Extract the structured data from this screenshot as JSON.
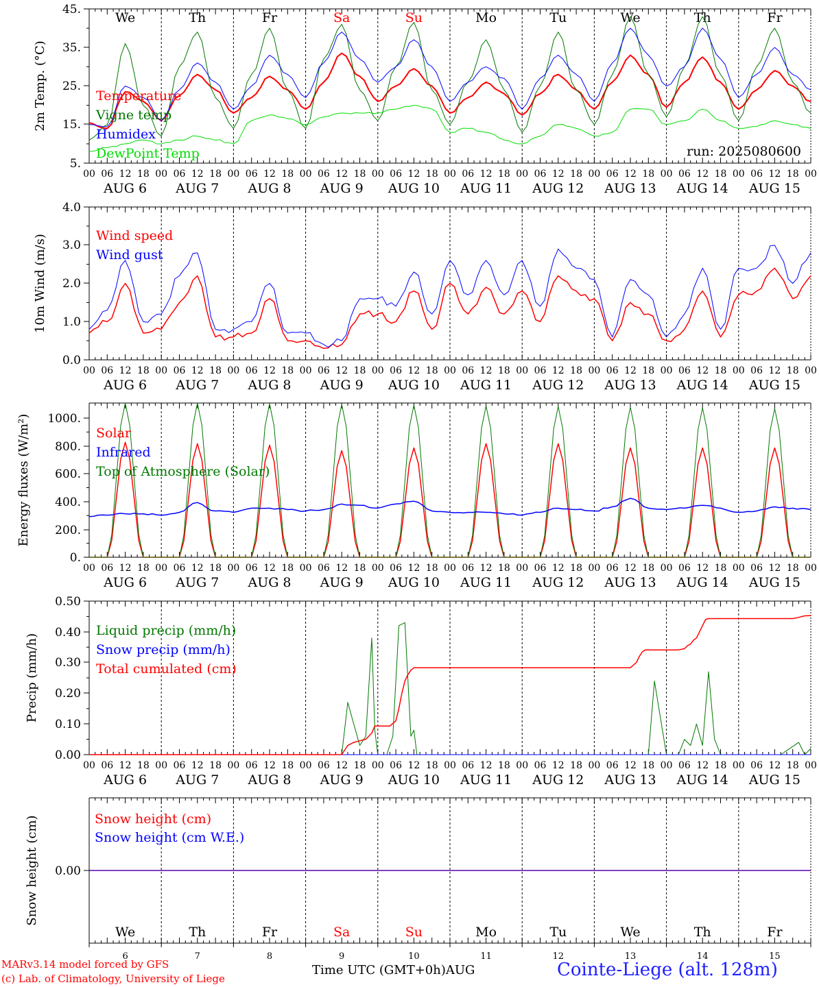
{
  "chart_data": [
    {
      "type": "line",
      "ylabel": "2m Temp. (°C)",
      "ytick_labels": [
        "5.",
        "15.",
        "25.",
        "35.",
        "45."
      ],
      "ylim": [
        5,
        45
      ],
      "annotation": "run: 2025080600",
      "weekday_labels": [
        "We",
        "Th",
        "Fr",
        "Sa",
        "Su",
        "Mo",
        "Tu",
        "We",
        "Th",
        "Fr"
      ],
      "weekday_colors": [
        "#000000",
        "#000000",
        "#000000",
        "#ff0000",
        "#ff0000",
        "#000000",
        "#000000",
        "#000000",
        "#000000",
        "#000000"
      ],
      "x_hours": [
        0,
        6,
        12,
        18,
        24,
        30,
        36,
        42,
        48,
        54,
        60,
        66,
        72,
        78,
        84,
        90,
        96,
        102,
        108,
        114,
        120,
        126,
        132,
        138,
        144,
        150,
        156,
        162,
        168,
        174,
        180,
        186,
        192,
        198,
        204,
        210,
        216,
        222,
        228,
        234,
        240
      ],
      "series": [
        {
          "name": "Temperature",
          "color": "#ff0000",
          "width": 2,
          "values": [
            15.5,
            14.0,
            23.5,
            21.0,
            16.0,
            22.5,
            28.0,
            24.0,
            18.0,
            22.0,
            27.5,
            24.0,
            19.0,
            26.0,
            33.5,
            27.5,
            21.0,
            25.0,
            29.5,
            25.0,
            18.0,
            22.0,
            26.0,
            23.0,
            17.5,
            23.0,
            28.0,
            24.0,
            19.0,
            26.0,
            33.0,
            28.0,
            19.5,
            26.0,
            32.5,
            26.0,
            19.0,
            24.0,
            29.0,
            25.0,
            21.0
          ]
        },
        {
          "name": "Vigne temp",
          "color": "#007700",
          "width": 1,
          "values": [
            11.0,
            15.0,
            36.0,
            20.0,
            12.0,
            30.0,
            39.0,
            22.0,
            14.0,
            28.0,
            40.0,
            24.0,
            14.0,
            32.0,
            41.0,
            24.0,
            16.0,
            30.0,
            41.5,
            24.0,
            15.0,
            26.0,
            37.0,
            24.0,
            13.0,
            25.0,
            39.0,
            24.0,
            15.0,
            28.0,
            43.0,
            28.0,
            17.0,
            30.0,
            43.0,
            28.0,
            16.0,
            30.0,
            40.0,
            26.0,
            18.0
          ]
        },
        {
          "name": "Humidex",
          "color": "#0000ff",
          "width": 1,
          "values": [
            15.0,
            14.5,
            25.0,
            22.0,
            16.0,
            24.0,
            31.0,
            26.0,
            19.0,
            25.0,
            33.0,
            28.0,
            22.0,
            31.0,
            39.0,
            32.0,
            26.0,
            30.0,
            37.0,
            30.0,
            21.0,
            26.0,
            30.0,
            27.0,
            19.0,
            27.0,
            33.0,
            28.0,
            21.0,
            31.0,
            40.0,
            33.0,
            25.0,
            30.0,
            40.0,
            32.0,
            22.0,
            28.0,
            35.0,
            28.0,
            24.0
          ]
        },
        {
          "name": "DewPoint Temp",
          "color": "#00dd00",
          "width": 1,
          "values": [
            8.0,
            9.0,
            10.0,
            11.0,
            10.0,
            11.0,
            12.0,
            11.0,
            10.0,
            16.0,
            17.5,
            16.5,
            15.0,
            17.0,
            18.0,
            18.0,
            18.0,
            19.0,
            20.0,
            19.0,
            13.0,
            14.0,
            13.0,
            11.0,
            10.0,
            12.0,
            15.0,
            14.0,
            12.0,
            13.0,
            19.0,
            19.0,
            15.0,
            16.0,
            19.0,
            16.0,
            14.0,
            14.5,
            16.0,
            15.0,
            14.0
          ]
        }
      ]
    },
    {
      "type": "line",
      "ylabel": "10m Wind (m/s)",
      "ytick_labels": [
        "0.0",
        "1.0",
        "2.0",
        "3.0",
        "4.0"
      ],
      "ylim": [
        0,
        4
      ],
      "x_hours": [
        0,
        6,
        12,
        18,
        24,
        30,
        36,
        42,
        48,
        54,
        60,
        66,
        72,
        78,
        84,
        90,
        96,
        102,
        108,
        114,
        120,
        126,
        132,
        138,
        144,
        150,
        156,
        162,
        168,
        174,
        180,
        186,
        192,
        198,
        204,
        210,
        216,
        222,
        228,
        234,
        240
      ],
      "series": [
        {
          "name": "Wind speed",
          "color": "#ff0000",
          "width": 1.5,
          "values": [
            0.7,
            1.0,
            2.0,
            0.7,
            0.8,
            1.5,
            2.2,
            0.6,
            0.6,
            0.7,
            1.6,
            0.5,
            0.5,
            0.3,
            0.4,
            1.2,
            1.2,
            1.0,
            1.8,
            0.8,
            2.0,
            1.2,
            1.9,
            1.2,
            1.8,
            1.0,
            2.2,
            1.8,
            1.6,
            0.5,
            1.5,
            1.2,
            0.5,
            0.8,
            1.8,
            0.6,
            1.7,
            1.8,
            2.4,
            1.6,
            2.2
          ]
        },
        {
          "name": "Wind gust",
          "color": "#0000ff",
          "width": 1,
          "values": [
            0.8,
            1.3,
            2.6,
            1.0,
            1.2,
            2.2,
            2.8,
            0.8,
            0.8,
            1.0,
            2.0,
            0.7,
            0.7,
            0.4,
            0.5,
            1.6,
            1.6,
            1.4,
            2.3,
            1.2,
            2.6,
            1.7,
            2.6,
            1.7,
            2.6,
            1.4,
            2.9,
            2.4,
            2.1,
            0.6,
            2.1,
            1.7,
            0.6,
            1.2,
            2.4,
            0.8,
            2.4,
            2.4,
            3.0,
            2.0,
            2.8
          ]
        }
      ]
    },
    {
      "type": "line",
      "ylabel": "Energy fluxes (W/m²)",
      "ytick_labels": [
        "0.",
        "200.",
        "400.",
        "600.",
        "800.",
        "1000."
      ],
      "ylim": [
        0,
        1100
      ],
      "x_hours": [
        0,
        6,
        12,
        18,
        24,
        30,
        36,
        42,
        48,
        54,
        60,
        66,
        72,
        78,
        84,
        90,
        96,
        102,
        108,
        114,
        120,
        126,
        132,
        138,
        144,
        150,
        156,
        162,
        168,
        174,
        180,
        186,
        192,
        198,
        204,
        210,
        216,
        222,
        228,
        234,
        240
      ],
      "series": [
        {
          "name": "Solar",
          "color": "#ff0000",
          "width": 1.5,
          "values": [
            0,
            0,
            820,
            0,
            0,
            0,
            810,
            0,
            0,
            0,
            800,
            0,
            0,
            0,
            760,
            0,
            0,
            0,
            780,
            0,
            0,
            0,
            810,
            0,
            0,
            0,
            810,
            0,
            0,
            0,
            780,
            0,
            0,
            0,
            780,
            0,
            0,
            0,
            780,
            0,
            0
          ]
        },
        {
          "name": "Infrared",
          "color": "#0000ff",
          "width": 1.5,
          "values": [
            290,
            300,
            310,
            310,
            300,
            320,
            390,
            330,
            320,
            350,
            350,
            340,
            330,
            340,
            380,
            370,
            350,
            380,
            400,
            330,
            320,
            320,
            320,
            310,
            300,
            320,
            350,
            340,
            330,
            360,
            420,
            350,
            340,
            350,
            370,
            350,
            320,
            330,
            360,
            350,
            340
          ]
        },
        {
          "name": "Top of Atmosphere (Solar)",
          "color": "#007700",
          "width": 1,
          "values": [
            0,
            0,
            1100,
            0,
            0,
            0,
            1100,
            0,
            0,
            0,
            1095,
            0,
            0,
            0,
            1090,
            0,
            0,
            0,
            1085,
            0,
            0,
            0,
            1080,
            0,
            0,
            0,
            1075,
            0,
            0,
            0,
            1070,
            0,
            0,
            0,
            1065,
            0,
            0,
            0,
            1060,
            0,
            0
          ]
        }
      ]
    },
    {
      "type": "line",
      "ylabel": "Precip (mm/h)",
      "ytick_labels": [
        "0.00",
        "0.10",
        "0.20",
        "0.30",
        "0.40",
        "0.50"
      ],
      "ylim": [
        0,
        0.5
      ],
      "series": [
        {
          "name": "Liquid precip (mm/h)",
          "color": "#007700",
          "width": 1,
          "x": [
            0,
            84,
            86,
            88,
            90,
            92,
            94,
            95,
            96,
            97,
            99,
            101,
            103,
            105,
            107,
            108,
            109,
            110,
            112,
            114,
            186,
            188,
            190,
            192,
            194,
            196,
            198,
            200,
            202,
            204,
            206,
            208,
            210,
            230,
            236,
            238,
            240
          ],
          "values": [
            0,
            0,
            0.17,
            0.1,
            0.03,
            0.06,
            0.38,
            0.08,
            0,
            0,
            0,
            0.06,
            0.42,
            0.43,
            0.06,
            0.08,
            0,
            0,
            0,
            0,
            0,
            0.24,
            0.12,
            0,
            0,
            0,
            0.05,
            0.03,
            0.1,
            0.03,
            0.27,
            0.05,
            0,
            0,
            0.04,
            0,
            0.02
          ]
        },
        {
          "name": "Snow precip (mm/h)",
          "color": "#0000ff",
          "width": 1,
          "x": [
            0,
            240
          ],
          "values": [
            0,
            0
          ]
        },
        {
          "name": "Total cumulated (cm)",
          "color": "#ff0000",
          "width": 1.5,
          "x": [
            0,
            84,
            86,
            88,
            90,
            92,
            94,
            95,
            96,
            100,
            102,
            103,
            104,
            105,
            106,
            107,
            108,
            110,
            180,
            182,
            183,
            184,
            185,
            196,
            198,
            199,
            200,
            201,
            202,
            203,
            204,
            205,
            206,
            208,
            234,
            236,
            238,
            240
          ],
          "values": [
            0,
            0,
            0.03,
            0.04,
            0.045,
            0.05,
            0.07,
            0.093,
            0.093,
            0.093,
            0.11,
            0.15,
            0.2,
            0.24,
            0.26,
            0.275,
            0.283,
            0.283,
            0.283,
            0.3,
            0.32,
            0.335,
            0.341,
            0.341,
            0.345,
            0.355,
            0.36,
            0.373,
            0.38,
            0.4,
            0.42,
            0.44,
            0.443,
            0.443,
            0.443,
            0.447,
            0.452,
            0.453
          ]
        }
      ]
    },
    {
      "type": "line",
      "ylabel": "Snow height (cm)",
      "ytick_labels": [
        "0.00"
      ],
      "ylim": [
        -1,
        1
      ],
      "weekday_labels": [
        "We",
        "Th",
        "Fr",
        "Sa",
        "Su",
        "Mo",
        "Tu",
        "We",
        "Th",
        "Fr"
      ],
      "weekday_colors": [
        "#000000",
        "#000000",
        "#000000",
        "#ff0000",
        "#ff0000",
        "#000000",
        "#000000",
        "#000000",
        "#000000",
        "#000000"
      ],
      "day_numbers": [
        "6",
        "7",
        "8",
        "9",
        "10",
        "11",
        "12",
        "13",
        "14",
        "15"
      ],
      "x_hours": [
        0,
        240
      ],
      "series": [
        {
          "name": "Snow height (cm)",
          "color": "#ff0000",
          "width": 1.5,
          "values": [
            0,
            0
          ]
        },
        {
          "name": "Snow height (cm W.E.)",
          "color": "#0000ff",
          "width": 1,
          "values": [
            0,
            0
          ]
        }
      ]
    }
  ],
  "x_axis": {
    "hour_labels": [
      "00",
      "06",
      "12",
      "18"
    ],
    "date_labels": [
      "AUG 6",
      "AUG 7",
      "AUG 8",
      "AUG 9",
      "AUG 10",
      "AUG 11",
      "AUG 12",
      "AUG 13",
      "AUG 14",
      "AUG 15"
    ],
    "final_hour_label": "00"
  },
  "footer": {
    "credit_line1": "MARv3.14 model forced by GFS",
    "credit_line2": "(c) Lab. of Climatology, University of Liege",
    "xaxis_label": "Time UTC (GMT+0h)AUG",
    "station": "Cointe-Liege (alt. 128m)"
  }
}
